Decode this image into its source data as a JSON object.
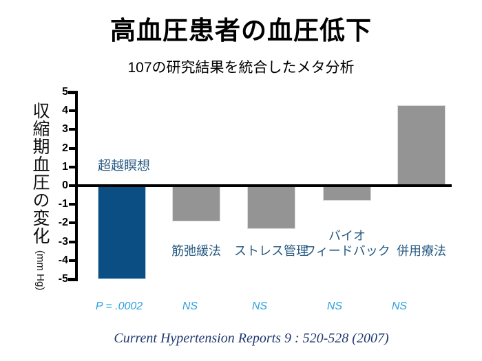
{
  "title": "高血圧患者の血圧低下",
  "subtitle": "107の研究結果を統合したメタ分析",
  "citation": "Current Hypertension Reports 9 : 520-528 (2007)",
  "chart_data": {
    "type": "bar",
    "title": "高血圧患者の血圧低下",
    "subtitle": "107の研究結果を統合したメタ分析",
    "ylabel": "収縮期血圧の変化",
    "ylabel_unit": "(mm Hg)",
    "ylim": [
      -5,
      5
    ],
    "yticks": [
      5,
      4,
      3,
      2,
      1,
      0,
      -1,
      -2,
      -3,
      -4,
      -5
    ],
    "grid": false,
    "legend": false,
    "zero_baseline": true,
    "categories": [
      "超越瞑想",
      "筋弛緩法",
      "ストレス管理",
      "バイオフィードバック",
      "併用療法"
    ],
    "values": [
      -5.0,
      -1.9,
      -2.3,
      -0.8,
      4.3
    ],
    "bars": [
      {
        "label_lines": [
          "超越瞑想"
        ],
        "value": -5.0,
        "significance": "P = .0002",
        "color": "#0A4E84",
        "edge": "#BDD7EE",
        "label_position": "above-axis"
      },
      {
        "label_lines": [
          "筋弛緩法"
        ],
        "value": -1.9,
        "significance": "NS",
        "color": "#949494",
        "edge": "#DCDCDC",
        "label_position": "below"
      },
      {
        "label_lines": [
          "ストレス管理"
        ],
        "value": -2.3,
        "significance": "NS",
        "color": "#949494",
        "edge": "#DCDCDC",
        "label_position": "below"
      },
      {
        "label_lines": [
          "バイオ",
          "フィードバック"
        ],
        "value": -0.8,
        "significance": "NS",
        "color": "#949494",
        "edge": "#DCDCDC",
        "label_position": "below"
      },
      {
        "label_lines": [
          "併用療法"
        ],
        "value": 4.3,
        "significance": "NS",
        "color": "#949494",
        "edge": "#DCDCDC",
        "label_position": "below"
      }
    ]
  },
  "colors": {
    "highlight_bar": "#0A4E84",
    "neutral_bar": "#949494",
    "category_label": "#275A82",
    "significance_label": "#2AA0DF",
    "citation_text": "#20386F",
    "axis": "#000000"
  }
}
